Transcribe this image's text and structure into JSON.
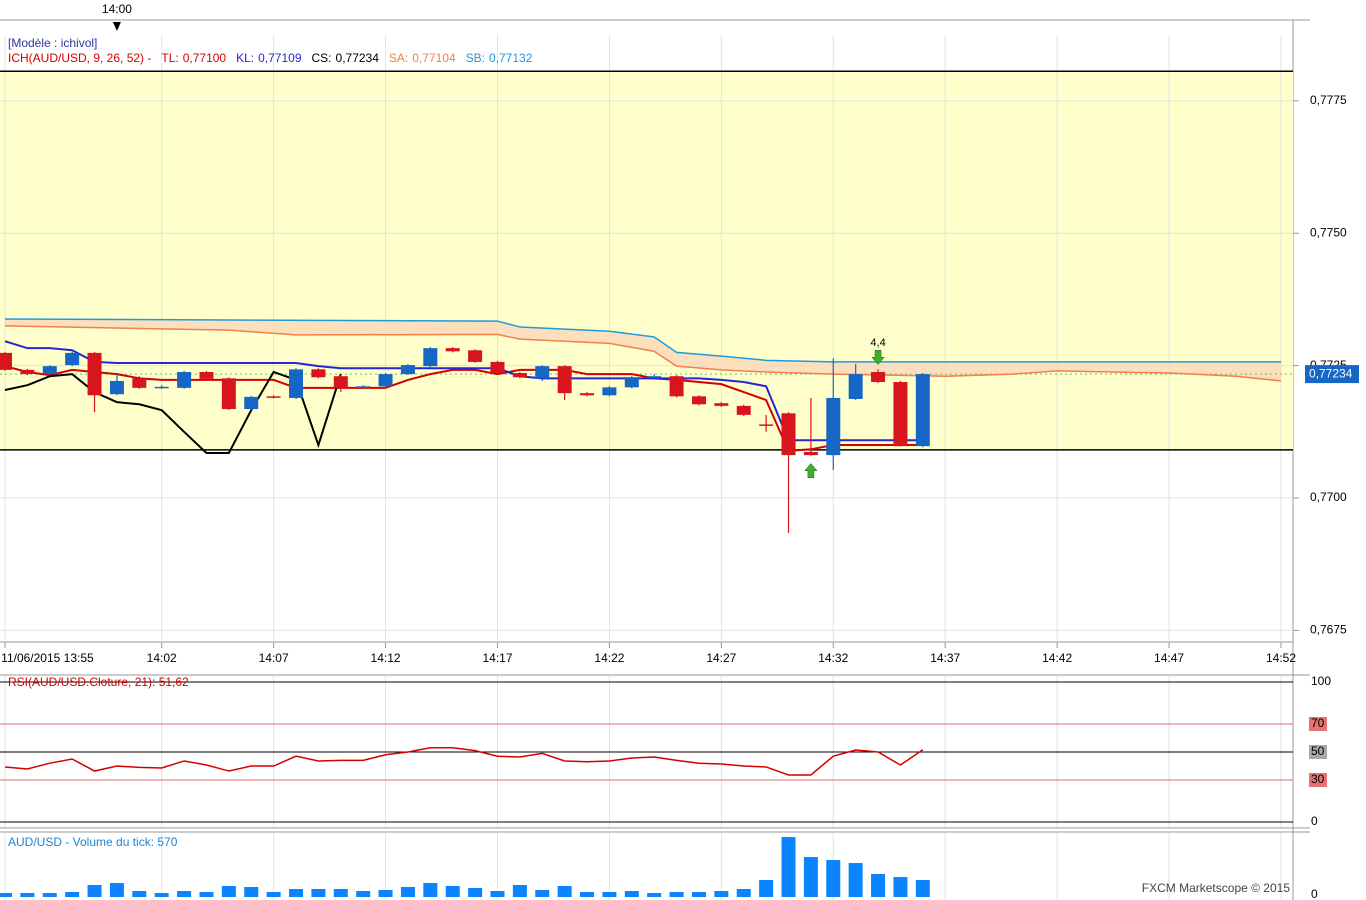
{
  "chart_data": [
    {
      "type": "candlestick",
      "title": "[Modèle : ichivol]",
      "indicator": "ICH(AUD/USD, 9, 26, 52) -",
      "time_marker": "14:00",
      "x": [
        "13:55",
        "13:56",
        "13:57",
        "13:58",
        "13:59",
        "14:00",
        "14:01",
        "14:02",
        "14:03",
        "14:04",
        "14:05",
        "14:06",
        "14:07",
        "14:08",
        "14:09",
        "14:10",
        "14:11",
        "14:12",
        "14:13",
        "14:14",
        "14:15",
        "14:16",
        "14:17",
        "14:18",
        "14:19",
        "14:20",
        "14:21",
        "14:22",
        "14:23",
        "14:24",
        "14:25",
        "14:26",
        "14:27",
        "14:28",
        "14:29",
        "14:30",
        "14:31",
        "14:32",
        "14:33",
        "14:34",
        "14:35",
        "14:36"
      ],
      "open": [
        0.77274,
        0.77242,
        0.77234,
        0.77251,
        0.77274,
        0.77196,
        0.77226,
        0.77209,
        0.77208,
        0.77238,
        0.77226,
        0.77168,
        0.77192,
        0.77189,
        0.77243,
        0.7723,
        0.77209,
        0.77211,
        0.77234,
        0.77249,
        0.77283,
        0.77279,
        0.77257,
        0.77236,
        0.77226,
        0.77249,
        0.77198,
        0.77194,
        0.77209,
        0.77228,
        0.7723,
        0.77192,
        0.77179,
        0.77174,
        0.77139,
        0.7716,
        0.77087,
        0.77081,
        0.77187,
        0.77238,
        0.77219,
        0.77098
      ],
      "high": [
        0.77276,
        0.77244,
        0.77251,
        0.77276,
        0.77276,
        0.77234,
        0.7723,
        0.77213,
        0.7724,
        0.7724,
        0.77228,
        0.77193,
        0.77194,
        0.77245,
        0.77245,
        0.77232,
        0.77213,
        0.77236,
        0.77253,
        0.77285,
        0.77285,
        0.77281,
        0.77259,
        0.77238,
        0.77251,
        0.77251,
        0.772,
        0.77211,
        0.7723,
        0.77234,
        0.77232,
        0.77194,
        0.77181,
        0.77176,
        0.77157,
        0.77162,
        0.77189,
        0.77264,
        0.77253,
        0.77243,
        0.77221,
        0.77236
      ],
      "low": [
        0.7724,
        0.77232,
        0.77232,
        0.77249,
        0.77162,
        0.77194,
        0.77206,
        0.77206,
        0.77206,
        0.77223,
        0.77166,
        0.77166,
        0.77188,
        0.77187,
        0.77226,
        0.772,
        0.77207,
        0.77209,
        0.77232,
        0.77247,
        0.77275,
        0.77255,
        0.77234,
        0.77226,
        0.77221,
        0.77185,
        0.77192,
        0.77192,
        0.77207,
        0.77226,
        0.7719,
        0.77175,
        0.77172,
        0.77155,
        0.77125,
        0.76934,
        0.7708,
        0.77053,
        0.77185,
        0.77217,
        0.77097,
        0.77096
      ],
      "close": [
        0.77242,
        0.77234,
        0.77249,
        0.77274,
        0.77194,
        0.77221,
        0.77208,
        0.7721,
        0.77238,
        0.77225,
        0.77168,
        0.77191,
        0.7719,
        0.77243,
        0.77228,
        0.77208,
        0.77211,
        0.77234,
        0.77251,
        0.77283,
        0.77277,
        0.77257,
        0.77236,
        0.77228,
        0.77249,
        0.77198,
        0.77194,
        0.77209,
        0.77228,
        0.7723,
        0.77192,
        0.77177,
        0.77174,
        0.77157,
        0.77137,
        0.77081,
        0.77081,
        0.77189,
        0.77234,
        0.77219,
        0.77098,
        0.77234
      ],
      "up_color": "#1666c5",
      "down_color": "#d8141c",
      "series": [
        {
          "name": "TL:",
          "value_label": "0,77100",
          "color": "#d40000",
          "values": [
            0.77249,
            0.77238,
            0.77232,
            0.77242,
            0.77238,
            0.77234,
            0.77226,
            0.77223,
            0.77223,
            0.77223,
            0.77223,
            0.77223,
            0.77223,
            0.77208,
            0.77208,
            0.77208,
            0.77208,
            0.77208,
            0.77223,
            0.77234,
            0.77242,
            0.77242,
            0.77234,
            0.77242,
            0.77242,
            0.77242,
            0.77234,
            0.77234,
            0.77234,
            0.77226,
            0.77223,
            0.77219,
            0.77215,
            0.772,
            0.77185,
            0.77089,
            0.77092,
            0.771,
            0.771,
            0.771,
            0.771,
            0.771
          ]
        },
        {
          "name": "KL:",
          "value_label": "0,77109",
          "color": "#2626d4",
          "values": [
            0.77296,
            0.77283,
            0.77283,
            0.77279,
            0.77257,
            0.77255,
            0.77255,
            0.77255,
            0.77255,
            0.77255,
            0.77255,
            0.77255,
            0.77255,
            0.77255,
            0.77249,
            0.77245,
            0.77245,
            0.77245,
            0.77245,
            0.77245,
            0.77245,
            0.77245,
            0.77245,
            0.7723,
            0.77226,
            0.77226,
            0.77226,
            0.77226,
            0.77226,
            0.77226,
            0.77226,
            0.77226,
            0.77223,
            0.77219,
            0.77211,
            0.77109,
            0.77109,
            0.77109,
            0.77109,
            0.77109,
            0.77109,
            0.77109
          ]
        },
        {
          "name": "CS:",
          "value_label": "0,77234",
          "color": "#000000",
          "x": [
            "13:55",
            "13:56",
            "13:57",
            "13:58",
            "13:59",
            "14:00",
            "14:01",
            "14:02",
            "14:03",
            "14:04",
            "14:05",
            "14:06",
            "14:07",
            "14:08",
            "14:09",
            "14:10"
          ],
          "values": [
            0.77204,
            0.77213,
            0.7723,
            0.77234,
            0.772,
            0.77181,
            0.77177,
            0.77166,
            0.77125,
            0.77085,
            0.77085,
            0.77166,
            0.77238,
            0.77223,
            0.771,
            0.77234
          ]
        },
        {
          "name": "SA:",
          "value_label": "0,77104",
          "color": "#f0804c",
          "x": [
            "13:55",
            "14:05",
            "14:08",
            "14:17",
            "14:18",
            "14:22",
            "14:24",
            "14:25",
            "14:27",
            "14:29",
            "14:32",
            "14:37",
            "14:40",
            "14:42",
            "14:47",
            "14:50",
            "14:52"
          ],
          "values": [
            0.77325,
            0.77317,
            0.77308,
            0.77309,
            0.773,
            0.77292,
            0.77277,
            0.77249,
            0.77242,
            0.77238,
            0.77234,
            0.7723,
            0.77234,
            0.7724,
            0.77236,
            0.7723,
            0.77221
          ]
        },
        {
          "name": "SB:",
          "value_label": "0,77132",
          "color": "#1e9be0",
          "x": [
            "13:55",
            "14:17",
            "14:18",
            "14:22",
            "14:24",
            "14:25",
            "14:27",
            "14:29",
            "14:32",
            "14:52"
          ],
          "values": [
            0.77338,
            0.77334,
            0.77323,
            0.77315,
            0.77304,
            0.77275,
            0.77268,
            0.7726,
            0.77257,
            0.77257
          ]
        }
      ],
      "cloud_color": "#fcd9b8",
      "zone": [
        0.77091,
        0.77806
      ],
      "zone_color": "#ffffcc",
      "current_price": {
        "value": 0.77234,
        "label": "0,77234"
      },
      "current_color": "#1666c5",
      "signals": [
        {
          "x": "14:31",
          "direction": "up",
          "color": "#3fae2a"
        },
        {
          "x": "14:34",
          "direction": "down",
          "color": "#3fae2a",
          "label": "4,4"
        }
      ],
      "ylim": [
        0.7673,
        0.7788
      ],
      "yticks": [
        {
          "value": 0.7675,
          "label": "0,7675"
        },
        {
          "value": 0.77,
          "label": "0,7700"
        },
        {
          "value": 0.7725,
          "label": "0,7725"
        },
        {
          "value": 0.775,
          "label": "0,7750"
        },
        {
          "value": 0.7775,
          "label": "0,7775"
        }
      ],
      "xlim": [
        "13:55",
        "14:52"
      ],
      "xticks": [
        {
          "value": "13:55",
          "label": "11/06/2015 13:55"
        },
        "14:02",
        "14:07",
        "14:12",
        "14:17",
        "14:22",
        "14:27",
        "14:32",
        "14:37",
        "14:42",
        "14:47",
        "14:52"
      ],
      "grid": true
    },
    {
      "type": "line",
      "title": "RSI(AUD/USD.Cloture, 21): 51,62",
      "color": "#d40000",
      "x": [
        "13:55",
        "13:56",
        "13:57",
        "13:58",
        "13:59",
        "14:00",
        "14:01",
        "14:02",
        "14:03",
        "14:04",
        "14:05",
        "14:06",
        "14:07",
        "14:08",
        "14:09",
        "14:10",
        "14:11",
        "14:12",
        "14:13",
        "14:14",
        "14:15",
        "14:16",
        "14:17",
        "14:18",
        "14:19",
        "14:20",
        "14:21",
        "14:22",
        "14:23",
        "14:24",
        "14:25",
        "14:26",
        "14:27",
        "14:28",
        "14:29",
        "14:30",
        "14:31",
        "14:32",
        "14:33",
        "14:34",
        "14:35",
        "14:36"
      ],
      "values": [
        39.3,
        37.9,
        42,
        45,
        36.4,
        40,
        39,
        38.6,
        43.6,
        40.7,
        36.4,
        40,
        40,
        47,
        43.6,
        44,
        44,
        48,
        50,
        53,
        53,
        51,
        47,
        46.4,
        49,
        43.6,
        43,
        43.6,
        45.7,
        46.4,
        44,
        42,
        41.4,
        40,
        39.3,
        33.6,
        33.6,
        47,
        51.4,
        50,
        40.7,
        51.62
      ],
      "ylim": [
        0,
        100
      ],
      "yticks": [
        100,
        70,
        50,
        30,
        0
      ],
      "grid_colors": [
        "#000000",
        "#e06a6a",
        "#000000",
        "#e06a6a",
        "#000000"
      ],
      "tick_backgrounds": [
        null,
        "#e57373",
        "#a8a8a8",
        "#e57373",
        null
      ]
    },
    {
      "type": "bar",
      "title": "AUD/USD - Volume du tick: 570",
      "color": "#0a84ff",
      "x": [
        "13:55",
        "13:56",
        "13:57",
        "13:58",
        "13:59",
        "14:00",
        "14:01",
        "14:02",
        "14:03",
        "14:04",
        "14:05",
        "14:06",
        "14:07",
        "14:08",
        "14:09",
        "14:10",
        "14:11",
        "14:12",
        "14:13",
        "14:14",
        "14:15",
        "14:16",
        "14:17",
        "14:18",
        "14:19",
        "14:20",
        "14:21",
        "14:22",
        "14:23",
        "14:24",
        "14:25",
        "14:26",
        "14:27",
        "14:28",
        "14:29",
        "14:30",
        "14:31",
        "14:32",
        "14:33",
        "14:34",
        "14:35",
        "14:36"
      ],
      "values": [
        134,
        134,
        134,
        168,
        402,
        469,
        201,
        134,
        201,
        168,
        369,
        335,
        168,
        268,
        268,
        268,
        201,
        235,
        335,
        469,
        369,
        302,
        201,
        402,
        235,
        369,
        168,
        168,
        201,
        134,
        168,
        168,
        201,
        268,
        570,
        2010,
        1340,
        1240,
        1139,
        771,
        670,
        570
      ],
      "ylim": [
        0,
        2180
      ],
      "yticks": [
        0
      ],
      "credit": "FXCM Marketscope © 2015"
    }
  ]
}
